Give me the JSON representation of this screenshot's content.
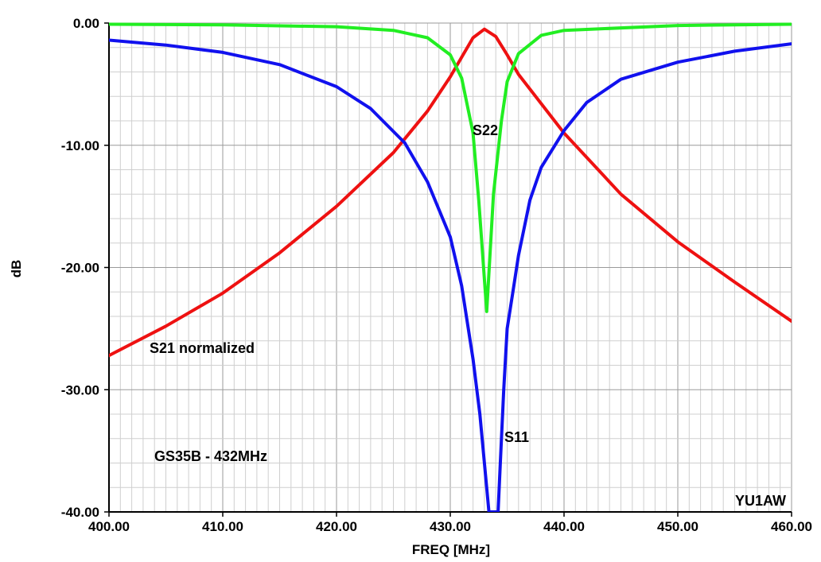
{
  "chart_data": {
    "type": "line",
    "title": "",
    "xlabel": "FREQ [MHz]",
    "ylabel": "dB",
    "xlim": [
      400,
      460
    ],
    "ylim": [
      -40,
      0
    ],
    "grid": true,
    "x_ticks": [
      400,
      410,
      420,
      430,
      440,
      450,
      460
    ],
    "x_tick_labels": [
      "400.00",
      "410.00",
      "420.00",
      "430.00",
      "440.00",
      "450.00",
      "460.00"
    ],
    "y_ticks": [
      0,
      -10,
      -20,
      -30,
      -40
    ],
    "y_tick_labels": [
      "0.00",
      "-10.00",
      "-20.00",
      "-30.00",
      "-40.00"
    ],
    "annotations": {
      "s21": "S21 normalized",
      "s22": "S22",
      "s11": "S11",
      "device": "GS35B - 432MHz",
      "author": "YU1AW"
    },
    "series": [
      {
        "name": "S21 normalized",
        "color": "#ee1111",
        "x": [
          400,
          405,
          410,
          415,
          420,
          425,
          428,
          430,
          431,
          432,
          433,
          434,
          435,
          436,
          438,
          440,
          445,
          450,
          455,
          460
        ],
        "y": [
          -27.2,
          -24.8,
          -22.1,
          -18.8,
          -15.0,
          -10.6,
          -7.2,
          -4.4,
          -2.8,
          -1.2,
          -0.5,
          -1.1,
          -2.6,
          -4.2,
          -6.6,
          -9.0,
          -14.0,
          -17.9,
          -21.2,
          -24.4
        ]
      },
      {
        "name": "S22",
        "color": "#22ee22",
        "x": [
          400,
          410,
          420,
          425,
          428,
          430,
          431,
          432,
          432.5,
          433.2,
          433.8,
          434.5,
          435,
          436,
          438,
          440,
          450,
          460
        ],
        "y": [
          -0.1,
          -0.15,
          -0.3,
          -0.6,
          -1.2,
          -2.6,
          -4.5,
          -9.0,
          -14.5,
          -23.6,
          -14.0,
          -8.0,
          -4.8,
          -2.5,
          -1.0,
          -0.6,
          -0.2,
          -0.1
        ]
      },
      {
        "name": "S11",
        "color": "#1111ee",
        "x": [
          400,
          405,
          410,
          415,
          420,
          423,
          426,
          428,
          430,
          431,
          432,
          432.6,
          433,
          433.4,
          433.7,
          434.2,
          434.4,
          434.7,
          435,
          435.5,
          436,
          437,
          438,
          440,
          442,
          445,
          450,
          455,
          460
        ],
        "y": [
          -1.4,
          -1.8,
          -2.4,
          -3.4,
          -5.2,
          -7.0,
          -9.8,
          -13.0,
          -17.5,
          -21.5,
          -27.5,
          -32.0,
          -36.0,
          -40.0,
          -40.0,
          -40.0,
          -36.0,
          -30.0,
          -25.0,
          -22.0,
          -19.0,
          -14.5,
          -11.8,
          -8.8,
          -6.5,
          -4.6,
          -3.2,
          -2.3,
          -1.7
        ]
      }
    ]
  }
}
